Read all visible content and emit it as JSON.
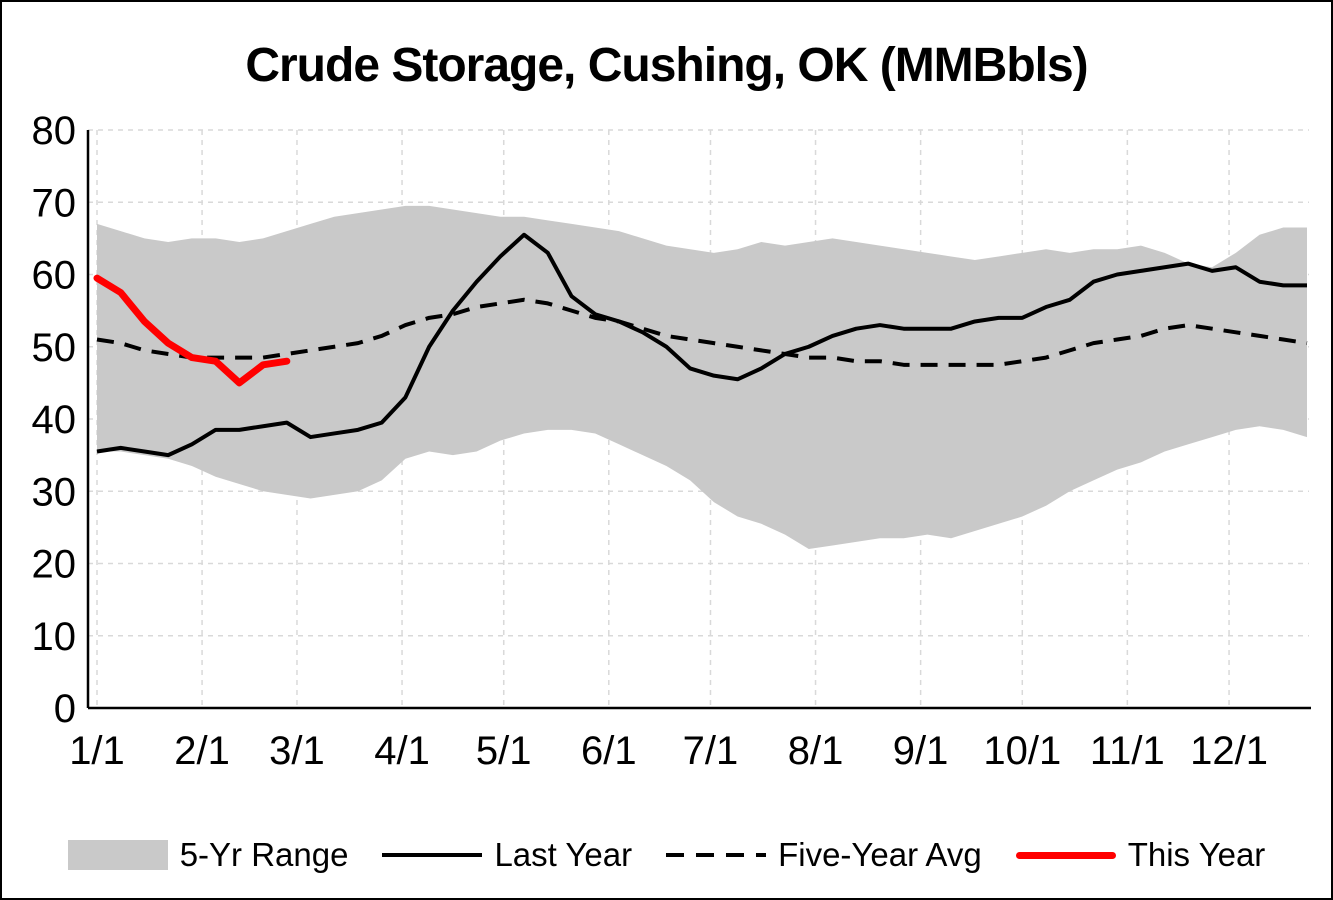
{
  "title": "Crude Storage, Cushing, OK (MMBbls)",
  "colors": {
    "band": "#c9c9c9",
    "last_year": "#000000",
    "five_year_avg": "#000000",
    "this_year": "#ff0000",
    "gridline": "#d9d9d9",
    "axis": "#000000",
    "text": "#000000"
  },
  "legend": [
    {
      "label": "5-Yr Range"
    },
    {
      "label": "Last Year"
    },
    {
      "label": "Five-Year Avg"
    },
    {
      "label": "This Year"
    }
  ],
  "chart_data": {
    "type": "line",
    "title": "Crude Storage, Cushing, OK (MMBbls)",
    "ylabel": "",
    "xlabel": "",
    "ylim": [
      0,
      80
    ],
    "y_ticks": [
      0,
      10,
      20,
      30,
      40,
      50,
      60,
      70,
      80
    ],
    "x_tick_labels": [
      "1/1",
      "2/1",
      "3/1",
      "4/1",
      "5/1",
      "6/1",
      "7/1",
      "8/1",
      "9/1",
      "10/1",
      "11/1",
      "12/1"
    ],
    "x_tick_days": [
      1,
      32,
      60,
      91,
      121,
      152,
      182,
      213,
      244,
      274,
      305,
      335
    ],
    "x_domain": [
      1,
      358
    ],
    "x_start_day": 1,
    "x_step_days": 7,
    "grid": true,
    "legend_position": "bottom",
    "series": [
      {
        "key": "range_upper",
        "name": "5-Yr Range (upper bound)",
        "type": "area-bound",
        "values": [
          67,
          66,
          65,
          64.5,
          65,
          65,
          64.5,
          65,
          66,
          67,
          68,
          68.5,
          69,
          69.5,
          69.5,
          69,
          68.5,
          68,
          68,
          67.5,
          67,
          66.5,
          66,
          65,
          64,
          63.5,
          63,
          63.5,
          64.5,
          64,
          64.5,
          65,
          64.5,
          64,
          63.5,
          63,
          62.5,
          62,
          62.5,
          63,
          63.5,
          63,
          63.5,
          63.5,
          64,
          63,
          61.5,
          61,
          63,
          65.5,
          66.5,
          66.5
        ]
      },
      {
        "key": "range_lower",
        "name": "5-Yr Range (lower bound)",
        "type": "area-bound",
        "values": [
          35.5,
          35.5,
          35,
          34.5,
          33.5,
          32,
          31,
          30,
          29.5,
          29,
          29.5,
          30,
          31.5,
          34.5,
          35.5,
          35,
          35.5,
          37,
          38,
          38.5,
          38.5,
          38,
          36.5,
          35,
          33.5,
          31.5,
          28.5,
          26.5,
          25.5,
          24,
          22,
          22.5,
          23,
          23.5,
          23.5,
          24,
          23.5,
          24.5,
          25.5,
          26.5,
          28,
          30,
          31.5,
          33,
          34,
          35.5,
          36.5,
          37.5,
          38.5,
          39,
          38.5,
          37.5
        ]
      },
      {
        "key": "last_year",
        "name": "Last Year",
        "type": "line-solid",
        "color": "#000000",
        "values": [
          35.5,
          36,
          35.5,
          35,
          36.5,
          38.5,
          38.5,
          39,
          39.5,
          37.5,
          38,
          38.5,
          39.5,
          43,
          50,
          55,
          59,
          62.5,
          65.5,
          63,
          57,
          54.5,
          53.5,
          52,
          50,
          47,
          46,
          45.5,
          47,
          49,
          50,
          51.5,
          52.5,
          53,
          52.5,
          52.5,
          52.5,
          53.5,
          54,
          54,
          55.5,
          56.5,
          59,
          60,
          60.5,
          61,
          61.5,
          60.5,
          61,
          59,
          58.5,
          58.5
        ]
      },
      {
        "key": "five_year_avg",
        "name": "Five-Year Avg",
        "type": "line-dashed",
        "color": "#000000",
        "values": [
          51,
          50.5,
          49.5,
          49,
          48.5,
          48.5,
          48.5,
          48.5,
          49,
          49.5,
          50,
          50.5,
          51.5,
          53,
          54,
          54.5,
          55.5,
          56,
          56.5,
          56,
          55,
          54,
          53.5,
          52.5,
          51.5,
          51,
          50.5,
          50,
          49.5,
          49,
          48.5,
          48.5,
          48,
          48,
          47.5,
          47.5,
          47.5,
          47.5,
          47.5,
          48,
          48.5,
          49.5,
          50.5,
          51,
          51.5,
          52.5,
          53,
          52.5,
          52,
          51.5,
          51,
          50.5
        ]
      },
      {
        "key": "this_year",
        "name": "This Year",
        "type": "line-solid-thick",
        "color": "#ff0000",
        "values": [
          59.5,
          57.5,
          53.5,
          50.5,
          48.5,
          48,
          45,
          47.5,
          48
        ]
      }
    ]
  }
}
